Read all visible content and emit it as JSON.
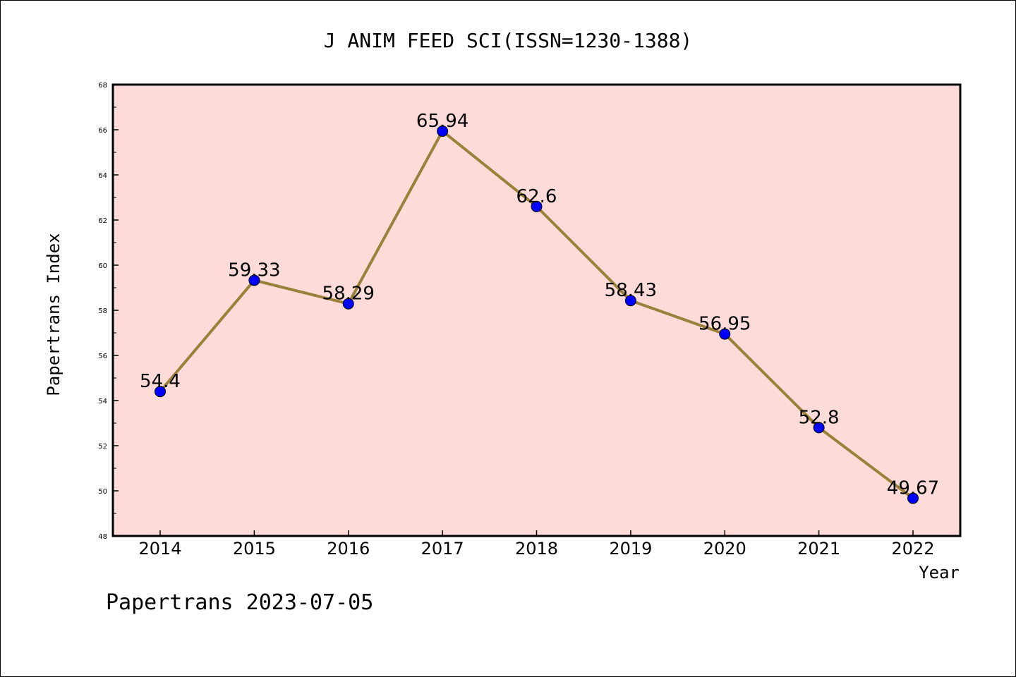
{
  "chart_data": {
    "type": "line",
    "title": "J ANIM FEED SCI(ISSN=1230-1388)",
    "xlabel": "Year",
    "ylabel": "Papertrans Index",
    "categories": [
      "2014",
      "2015",
      "2016",
      "2017",
      "2018",
      "2019",
      "2020",
      "2021",
      "2022"
    ],
    "series": [
      {
        "values": [
          54.4,
          59.33,
          58.29,
          65.94,
          62.6,
          58.43,
          56.95,
          52.8,
          49.67
        ],
        "labels": [
          "54.4",
          "59.33",
          "58.29",
          "65.94",
          "62.6",
          "58.43",
          "56.95",
          "52.8",
          "49.67"
        ]
      }
    ],
    "ylim": [
      48,
      68
    ],
    "yticks": [
      "48",
      "50",
      "52",
      "54",
      "56",
      "58",
      "60",
      "62",
      "64",
      "66",
      "68"
    ],
    "grid": false,
    "legend": "none",
    "colors": {
      "plot_background": "#fddbd8",
      "line": "#9a8039",
      "marker": "#0000ff"
    }
  },
  "footer": {
    "text": "Papertrans 2023-07-05"
  }
}
